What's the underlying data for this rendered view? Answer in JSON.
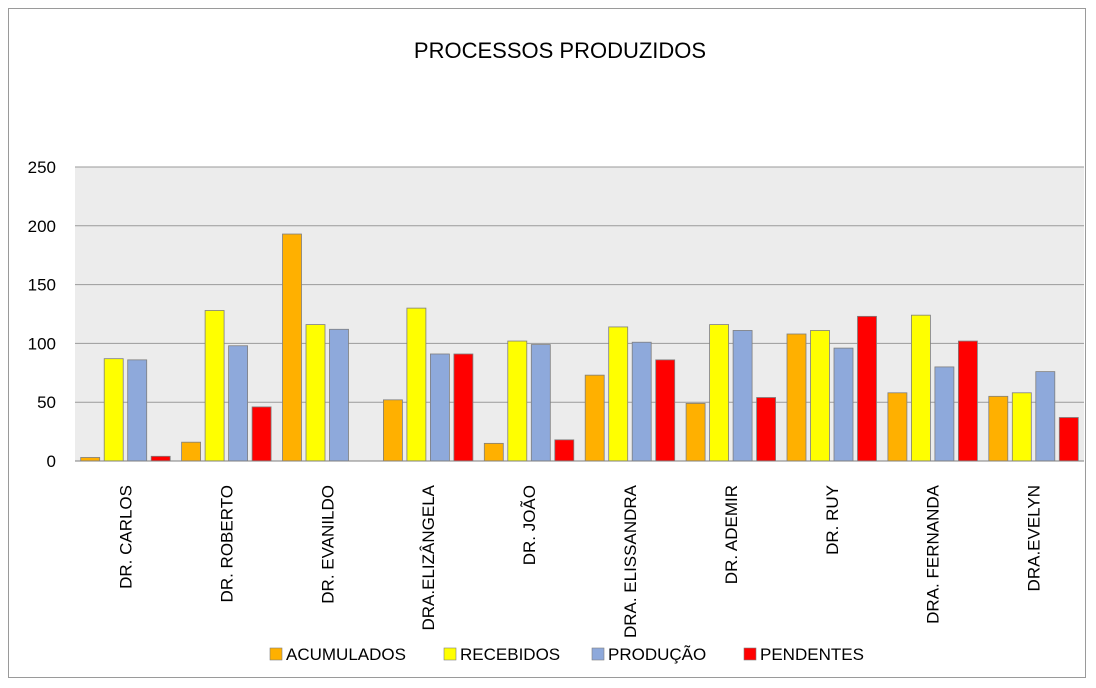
{
  "chart_data": {
    "type": "bar",
    "title": "PROCESSOS PRODUZIDOS",
    "xlabel": "",
    "ylabel": "",
    "ylim": [
      0,
      250
    ],
    "yticks": [
      0,
      50,
      100,
      150,
      200,
      250
    ],
    "grid": true,
    "legend_position": "bottom",
    "categories": [
      "DR. CARLOS",
      "DR. ROBERTO",
      "DR. EVANILDO",
      "DRA.ELIZÂNGELA",
      "DR. JOÃO",
      "DRA. ELISSANDRA",
      "DR. ADEMIR",
      "DR. RUY",
      "DRA. FERNANDA",
      "DRA.EVELYN"
    ],
    "series": [
      {
        "name": "ACUMULADOS",
        "color": "#FFB000",
        "values": [
          3,
          16,
          193,
          52,
          15,
          73,
          49,
          108,
          58,
          55
        ]
      },
      {
        "name": "RECEBIDOS",
        "color": "#FFFF00",
        "values": [
          87,
          128,
          116,
          130,
          102,
          114,
          116,
          111,
          124,
          58
        ]
      },
      {
        "name": "PRODUÇÃO",
        "color": "#8EA9DB",
        "values": [
          86,
          98,
          112,
          91,
          99,
          101,
          111,
          96,
          80,
          76
        ]
      },
      {
        "name": "PENDENTES",
        "color": "#FF0000",
        "values": [
          4,
          46,
          0,
          91,
          18,
          86,
          54,
          123,
          102,
          37
        ]
      }
    ]
  }
}
